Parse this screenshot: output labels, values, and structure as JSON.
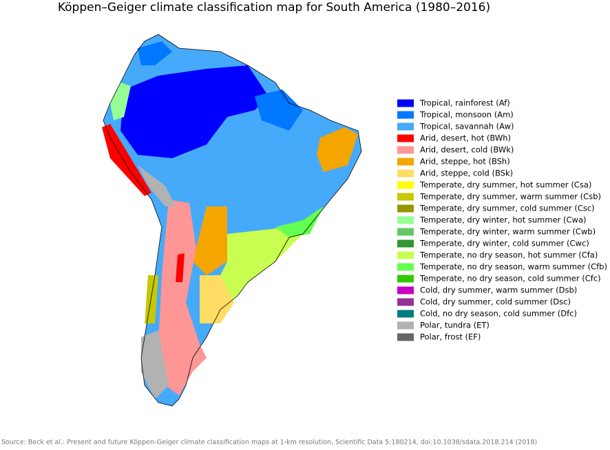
{
  "title": "Köppen–Geiger climate classification map for South America (1980–2016)",
  "legend": [
    {
      "label": "Tropical, rainforest (Af)",
      "color": "#0000fe"
    },
    {
      "label": "Tropical, monsoon (Am)",
      "color": "#0078ff"
    },
    {
      "label": "Tropical, savannah (Aw)",
      "color": "#46aafa"
    },
    {
      "label": "Arid, desert, hot (BWh)",
      "color": "#ff0000"
    },
    {
      "label": "Arid, desert, cold (BWk)",
      "color": "#ff9696"
    },
    {
      "label": "Arid, steppe, hot (BSh)",
      "color": "#f5a500"
    },
    {
      "label": "Arid, steppe, cold (BSk)",
      "color": "#ffdc64"
    },
    {
      "label": "Temperate, dry summer, hot summer (Csa)",
      "color": "#ffff00"
    },
    {
      "label": "Temperate, dry summer, warm summer (Csb)",
      "color": "#c8c800"
    },
    {
      "label": "Temperate, dry summer, cold summer (Csc)",
      "color": "#969600"
    },
    {
      "label": "Temperate, dry winter, hot summer (Cwa)",
      "color": "#96ff96"
    },
    {
      "label": "Temperate, dry winter, warm summer (Cwb)",
      "color": "#64c864"
    },
    {
      "label": "Temperate, dry winter, cold summer (Cwc)",
      "color": "#329632"
    },
    {
      "label": "Temperate, no dry season, hot summer (Cfa)",
      "color": "#c8ff50"
    },
    {
      "label": "Temperate, no dry season, warm summer (Cfb)",
      "color": "#64ff50"
    },
    {
      "label": "Temperate, no dry season, cold summer (Cfc)",
      "color": "#32c800"
    },
    {
      "label": "Cold, dry summer, warm summer (Dsb)",
      "color": "#c800c8"
    },
    {
      "label": "Cold, dry summer, cold summer (Dsc)",
      "color": "#963296"
    },
    {
      "label": "Cold, no dry season, cold summer (Dfc)",
      "color": "#007d7d"
    },
    {
      "label": "Polar, tundra (ET)",
      "color": "#b2b2b2"
    },
    {
      "label": "Polar, frost (EF)",
      "color": "#666666"
    }
  ],
  "source": "Source: Beck et al.: Present and future Köppen-Geiger climate classification maps at 1-km resolution, Scientific Data 5:180214, doi:10.1038/sdata.2018.214 (2018)"
}
